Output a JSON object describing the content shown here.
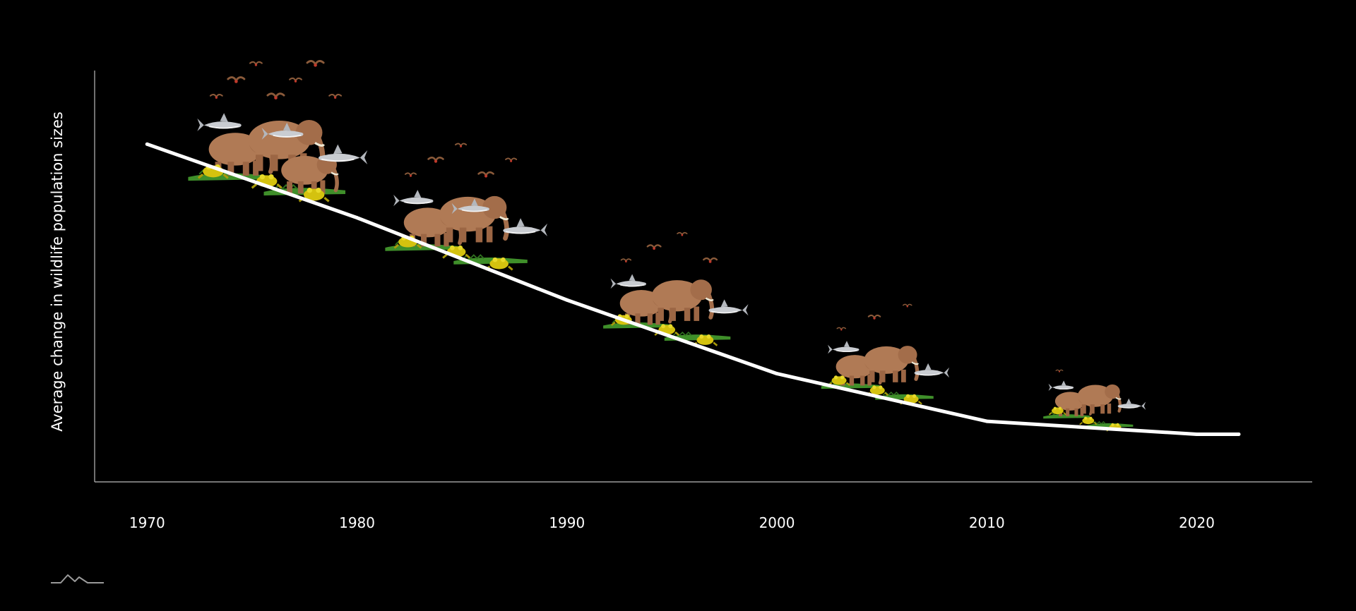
{
  "chart_data": {
    "type": "line",
    "title": "",
    "xlabel": "",
    "ylabel": "Average change in wildlife population sizes",
    "x": [
      1970,
      1980,
      1990,
      2000,
      2010,
      2020,
      2022
    ],
    "y": [
      100,
      83,
      64,
      47,
      36,
      33,
      33
    ],
    "series": [
      {
        "x": [
          1970,
          1980,
          1990,
          2000,
          2010,
          2020,
          2022
        ],
        "y": [
          100,
          83,
          64,
          47,
          36,
          33,
          33
        ]
      }
    ],
    "x_ticks": [
      "1970",
      "1980",
      "1990",
      "2000",
      "2010",
      "2020"
    ],
    "xlim": [
      1967.5,
      2025.5
    ],
    "ylim": [
      22,
      117
    ],
    "grid": false,
    "line_color": "#ffffff",
    "axis_color": "#bbbbbb",
    "background": "#000000",
    "illustration_groups": [
      {
        "x": 1976,
        "animals": [
          "elephant",
          "elephant",
          "shark",
          "shark",
          "crocodile",
          "frog",
          "bird"
        ]
      },
      {
        "x": 1985,
        "animals": [
          "elephant",
          "shark",
          "shark",
          "crocodile",
          "frog",
          "bird"
        ]
      },
      {
        "x": 1995,
        "animals": [
          "elephant",
          "shark",
          "crocodile",
          "frog",
          "bird"
        ]
      },
      {
        "x": 2005,
        "animals": [
          "elephant",
          "shark",
          "crocodile",
          "frog",
          "bird"
        ]
      },
      {
        "x": 2015,
        "animals": [
          "elephant",
          "shark",
          "crocodile",
          "frog",
          "bird"
        ]
      }
    ]
  },
  "logo": {
    "icon": "mountain-logo-icon"
  }
}
